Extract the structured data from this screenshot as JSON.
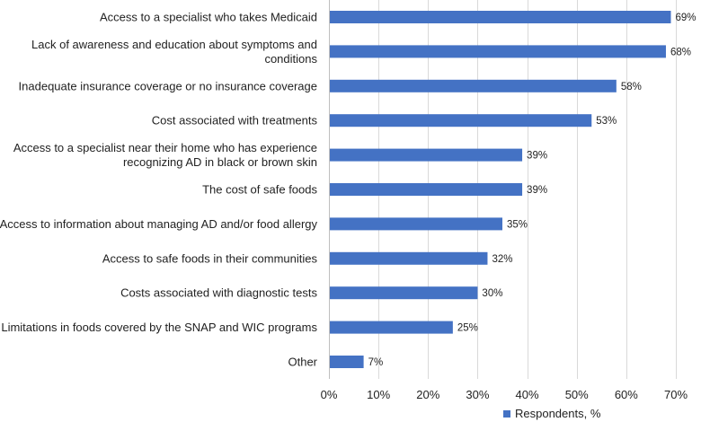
{
  "chart_data": {
    "type": "bar",
    "orientation": "horizontal",
    "categories": [
      "Access to a specialist who takes Medicaid",
      "Lack of awareness and education about symptoms and conditions",
      "Inadequate insurance coverage or no insurance coverage",
      "Cost associated with treatments",
      "Access to a specialist near their home who has experience recognizing AD in black or brown skin",
      "The cost of safe foods",
      "Access to information about managing AD and/or food allergy",
      "Access to safe foods in their communities",
      "Costs associated with diagnostic tests",
      "Limitations in foods covered by the SNAP and WIC programs",
      "Other"
    ],
    "category_lines": [
      [
        "Access to a specialist who takes Medicaid"
      ],
      [
        "Lack of awareness and education about symptoms and",
        "conditions"
      ],
      [
        "Inadequate insurance coverage or no insurance coverage"
      ],
      [
        "Cost associated with treatments"
      ],
      [
        "Access to a specialist near their home who has experience",
        "recognizing AD in black or brown skin"
      ],
      [
        "The cost of safe foods"
      ],
      [
        "Access to information about managing AD and/or food allergy"
      ],
      [
        "Access to safe foods in their communities"
      ],
      [
        "Costs associated with diagnostic tests"
      ],
      [
        "Limitations in foods covered by the SNAP and WIC programs"
      ],
      [
        "Other"
      ]
    ],
    "series": [
      {
        "name": "Respondents, %",
        "values": [
          69,
          68,
          58,
          53,
          39,
          39,
          35,
          32,
          30,
          25,
          7
        ],
        "labels": [
          "69%",
          "68%",
          "58%",
          "53%",
          "39%",
          "39%",
          "35%",
          "32%",
          "30%",
          "25%",
          "7%"
        ]
      }
    ],
    "xlim": [
      0,
      70
    ],
    "xticks": [
      0,
      10,
      20,
      30,
      40,
      50,
      60,
      70
    ],
    "xtick_labels": [
      "0%",
      "10%",
      "20%",
      "30%",
      "40%",
      "50%",
      "60%",
      "70%"
    ],
    "title": "",
    "xlabel": "",
    "ylabel": "",
    "grid": true,
    "legend": {
      "position": "bottom-right",
      "label": "Respondents, %"
    },
    "bar_color": "#4472c4",
    "grid_color": "#d9d9d9",
    "axis_color": "#bfbfbf"
  }
}
